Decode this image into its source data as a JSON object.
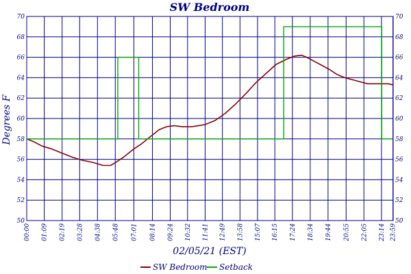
{
  "chart_data": {
    "type": "line",
    "title": "SW Bedroom",
    "xlabel": "02/05/21 (EST)",
    "ylabel": "Degrees F",
    "ylim": [
      50,
      70
    ],
    "yticks": [
      "50",
      "52",
      "54",
      "56",
      "58",
      "60",
      "62",
      "64",
      "66",
      "68",
      "70"
    ],
    "xlim_minutes": [
      0,
      1440
    ],
    "xticks": [
      "00:00",
      "01:09",
      "02:19",
      "03:28",
      "04:38",
      "05:48",
      "07:01",
      "08:14",
      "09:24",
      "10:32",
      "11:41",
      "12:49",
      "13:58",
      "15:07",
      "16:15",
      "17:24",
      "18:34",
      "19:44",
      "20:55",
      "22:05",
      "23:14",
      "23:59"
    ],
    "xtick_minutes": [
      0,
      69,
      139,
      208,
      278,
      348,
      421,
      494,
      564,
      632,
      701,
      769,
      838,
      907,
      975,
      1044,
      1114,
      1184,
      1255,
      1325,
      1394,
      1439
    ],
    "grid": true,
    "legend_position": "bottom",
    "colors": {
      "grid": "#000080",
      "text": "#000080",
      "sw_bedroom": "#8b0000",
      "setback": "#00aa00"
    },
    "series": [
      {
        "name": "SW Bedroom",
        "color": "#8b0000",
        "x_minutes": [
          0,
          30,
          60,
          100,
          140,
          180,
          220,
          260,
          300,
          330,
          350,
          380,
          420,
          450,
          480,
          520,
          550,
          580,
          610,
          650,
          700,
          740,
          780,
          820,
          860,
          900,
          940,
          980,
          1020,
          1050,
          1080,
          1100,
          1130,
          1160,
          1190,
          1220,
          1250,
          1280,
          1310,
          1340,
          1370,
          1400,
          1420,
          1439
        ],
        "values": [
          58.0,
          57.7,
          57.3,
          57.0,
          56.6,
          56.2,
          55.9,
          55.7,
          55.4,
          55.4,
          55.7,
          56.2,
          57.0,
          57.5,
          58.1,
          58.9,
          59.2,
          59.3,
          59.2,
          59.2,
          59.4,
          59.8,
          60.5,
          61.4,
          62.4,
          63.5,
          64.4,
          65.3,
          65.8,
          66.1,
          66.2,
          66.0,
          65.6,
          65.2,
          64.8,
          64.3,
          64.0,
          63.8,
          63.6,
          63.4,
          63.4,
          63.4,
          63.4,
          63.3
        ]
      },
      {
        "name": "Setback",
        "color": "#00aa00",
        "step": true,
        "x_minutes": [
          0,
          358,
          358,
          440,
          440,
          1010,
          1010,
          1395,
          1395,
          1439
        ],
        "values": [
          58,
          58,
          66,
          66,
          58,
          58,
          69,
          69,
          58,
          58
        ]
      }
    ]
  }
}
